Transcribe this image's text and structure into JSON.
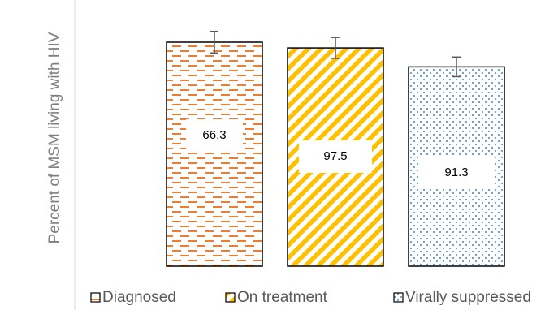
{
  "chart_data": {
    "type": "bar",
    "y_label": "Percent of MSM living with HIV",
    "categories": [
      "Diagnosed",
      "On treatment",
      "Virally suppressed"
    ],
    "values": [
      66.3,
      64.6,
      59.0
    ],
    "errors": [
      3.2,
      3.1,
      2.9
    ],
    "annotations": [
      "66.3",
      "97.5",
      "91.3"
    ],
    "colors": [
      "#ED7D31",
      "#FFC000",
      "#5B9BD5"
    ],
    "patterns": [
      "dash",
      "stripe",
      "dot"
    ],
    "ylim": [
      0,
      100
    ],
    "legend": "bottom"
  }
}
